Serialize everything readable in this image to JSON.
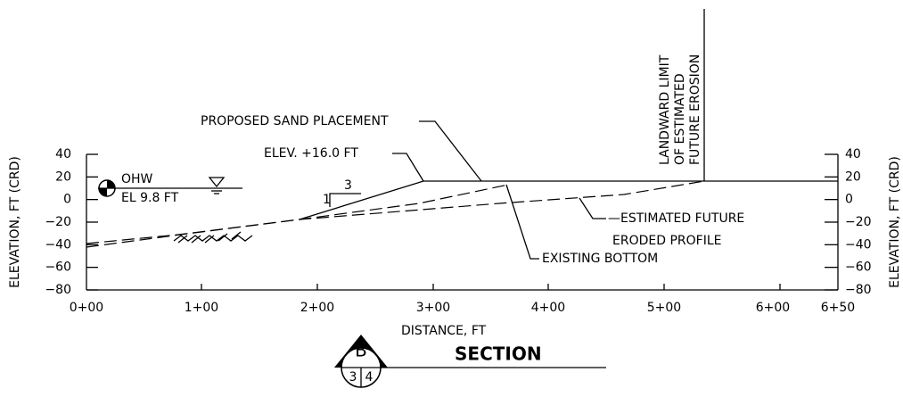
{
  "axes": {
    "y_label": "ELEVATION, FT (CRD)",
    "x_label": "DISTANCE, FT",
    "yticks": [
      "40",
      "20",
      "0",
      "−20",
      "−40",
      "−60",
      "−80"
    ],
    "xticks": [
      "0+00",
      "1+00",
      "2+00",
      "3+00",
      "4+00",
      "5+00",
      "6+00",
      "6+50"
    ]
  },
  "water": {
    "label": "OHW",
    "elevation": "EL 9.8 FT"
  },
  "annotations": {
    "proposed": "PROPOSED SAND PLACEMENT",
    "elev": "ELEV. +16.0 FT",
    "landward": [
      "LANDWARD LIMIT",
      "OF ESTIMATED",
      "FUTURE EROSION"
    ],
    "eroded": [
      "—ESTIMATED FUTURE",
      "ERODED PROFILE"
    ],
    "existing": "EXISTING BOTTOM",
    "slope_rise": "1",
    "slope_run": "3"
  },
  "section": {
    "letter": "B",
    "sheet_left": "3",
    "sheet_right": "4",
    "title": "SECTION"
  }
}
